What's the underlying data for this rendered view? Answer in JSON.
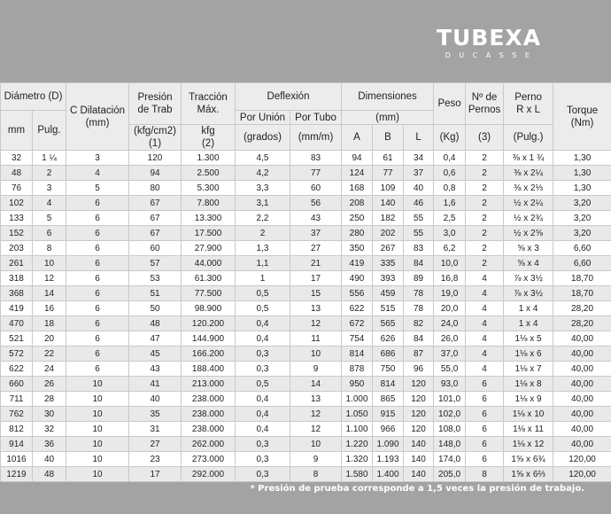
{
  "brand": {
    "name": "TUBEXA",
    "sub": "DUCASSE"
  },
  "headers": {
    "diametro": "Diámetro (D)",
    "mm": "mm",
    "pulg": "Pulg.",
    "dilatacion_1": "C Dilatación",
    "dilatacion_2": "(mm)",
    "presion_1": "Presión",
    "presion_2": "de Trab",
    "presion_3": "(kfg/cm2)",
    "presion_4": "(1)",
    "traccion_1": "Tracción",
    "traccion_2": "Máx.",
    "traccion_3": "kfg",
    "traccion_4": "(2)",
    "deflexion": "Deflexión",
    "por_union": "Por Unión",
    "por_union_unit": "(grados)",
    "por_tubo": "Por Tubo",
    "por_tubo_unit": "(mm/m)",
    "dimensiones": "Dimensiones",
    "dim_unit": "(mm)",
    "a": "A",
    "b": "B",
    "l": "L",
    "peso": "Peso",
    "peso_unit": "(Kg)",
    "pernos_1": "Nº de",
    "pernos_2": "Pernos",
    "pernos_3": "(3)",
    "perno_1": "Perno",
    "perno_2": "R x L",
    "perno_3": "(Pulg.)",
    "torque_1": "Torque",
    "torque_2": "(Nm)"
  },
  "rows": [
    [
      "32",
      "1 ¼",
      "3",
      "120",
      "1.300",
      "4,5",
      "83",
      "94",
      "61",
      "34",
      "0,4",
      "2",
      "⅜ x 1 ¾",
      "1,30"
    ],
    [
      "48",
      "2",
      "4",
      "94",
      "2.500",
      "4,2",
      "77",
      "124",
      "77",
      "37",
      "0,6",
      "2",
      "⅜ x 2¼",
      "1,30"
    ],
    [
      "76",
      "3",
      "5",
      "80",
      "5.300",
      "3,3",
      "60",
      "168",
      "109",
      "40",
      "0,8",
      "2",
      "⅜ x 2⅓",
      "1,30"
    ],
    [
      "102",
      "4",
      "6",
      "67",
      "7.800",
      "3,1",
      "56",
      "208",
      "140",
      "46",
      "1,6",
      "2",
      "½ x 2¼",
      "3,20"
    ],
    [
      "133",
      "5",
      "6",
      "67",
      "13.300",
      "2,2",
      "43",
      "250",
      "182",
      "55",
      "2,5",
      "2",
      "½ x 2¾",
      "3,20"
    ],
    [
      "152",
      "6",
      "6",
      "67",
      "17.500",
      "2",
      "37",
      "280",
      "202",
      "55",
      "3,0",
      "2",
      "½ x 2⅝",
      "3,20"
    ],
    [
      "203",
      "8",
      "6",
      "60",
      "27.900",
      "1,3",
      "27",
      "350",
      "267",
      "83",
      "6,2",
      "2",
      "⅝ x 3",
      "6,60"
    ],
    [
      "261",
      "10",
      "6",
      "57",
      "44.000",
      "1,1",
      "21",
      "419",
      "335",
      "84",
      "10,0",
      "2",
      "⅝ x 4",
      "6,60"
    ],
    [
      "318",
      "12",
      "6",
      "53",
      "61.300",
      "1",
      "17",
      "490",
      "393",
      "89",
      "16,8",
      "4",
      "⅞ x 3½",
      "18,70"
    ],
    [
      "368",
      "14",
      "6",
      "51",
      "77.500",
      "0,5",
      "15",
      "556",
      "459",
      "78",
      "19,0",
      "4",
      "⅞ x 3½",
      "18,70"
    ],
    [
      "419",
      "16",
      "6",
      "50",
      "98.900",
      "0,5",
      "13",
      "622",
      "515",
      "78",
      "20,0",
      "4",
      "1 x 4",
      "28,20"
    ],
    [
      "470",
      "18",
      "6",
      "48",
      "120.200",
      "0,4",
      "12",
      "672",
      "565",
      "82",
      "24,0",
      "4",
      "1 x 4",
      "28,20"
    ],
    [
      "521",
      "20",
      "6",
      "47",
      "144.900",
      "0,4",
      "11",
      "754",
      "626",
      "84",
      "26,0",
      "4",
      "1⅛ x 5",
      "40,00"
    ],
    [
      "572",
      "22",
      "6",
      "45",
      "166.200",
      "0,3",
      "10",
      "814",
      "686",
      "87",
      "37,0",
      "4",
      "1⅛ x 6",
      "40,00"
    ],
    [
      "622",
      "24",
      "6",
      "43",
      "188.400",
      "0,3",
      "9",
      "878",
      "750",
      "96",
      "55,0",
      "4",
      "1⅛ x 7",
      "40,00"
    ],
    [
      "660",
      "26",
      "10",
      "41",
      "213.000",
      "0,5",
      "14",
      "950",
      "814",
      "120",
      "93,0",
      "6",
      "1⅛ x 8",
      "40,00"
    ],
    [
      "711",
      "28",
      "10",
      "40",
      "238.000",
      "0,4",
      "13",
      "1.000",
      "865",
      "120",
      "101,0",
      "6",
      "1⅛ x 9",
      "40,00"
    ],
    [
      "762",
      "30",
      "10",
      "35",
      "238.000",
      "0,4",
      "12",
      "1.050",
      "915",
      "120",
      "102,0",
      "6",
      "1⅛ x 10",
      "40,00"
    ],
    [
      "812",
      "32",
      "10",
      "31",
      "238.000",
      "0,4",
      "12",
      "1.100",
      "966",
      "120",
      "108,0",
      "6",
      "1⅛ x 11",
      "40,00"
    ],
    [
      "914",
      "36",
      "10",
      "27",
      "262.000",
      "0,3",
      "10",
      "1.220",
      "1.090",
      "140",
      "148,0",
      "6",
      "1⅛ x 12",
      "40,00"
    ],
    [
      "1016",
      "40",
      "10",
      "23",
      "273.000",
      "0,3",
      "9",
      "1.320",
      "1.193",
      "140",
      "174,0",
      "6",
      "1⅝ x 6¾",
      "120,00"
    ],
    [
      "1219",
      "48",
      "10",
      "17",
      "292.000",
      "0,3",
      "8",
      "1.580",
      "1.400",
      "140",
      "205,0",
      "8",
      "1⅝ x 6⅔",
      "120,00"
    ]
  ],
  "footnote": "* Presión de prueba corresponde a 1,5 veces la presión de trabajo."
}
